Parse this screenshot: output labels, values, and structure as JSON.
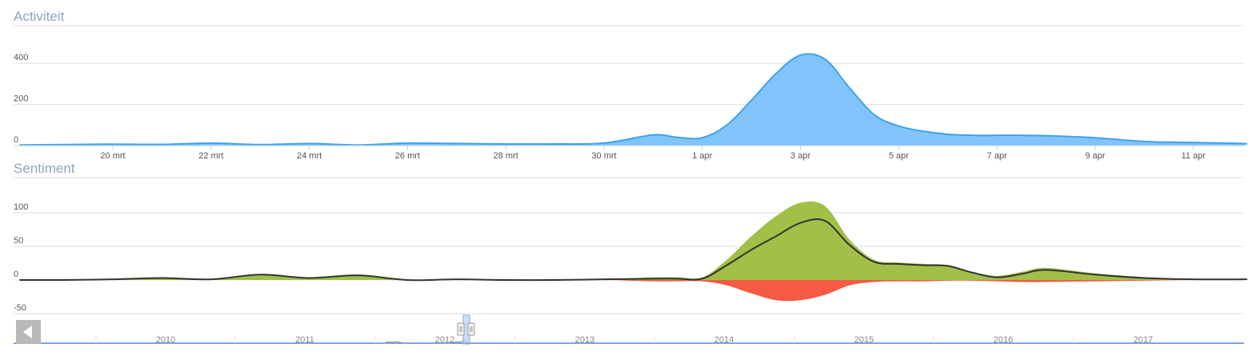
{
  "activity": {
    "title": "Activiteit"
  },
  "sentiment": {
    "title": "Sentiment"
  },
  "navigator": {
    "years": [
      "2010",
      "2011",
      "2012",
      "2013",
      "2014",
      "2015",
      "2016",
      "2017"
    ],
    "back_icon": "chevron-left-icon"
  },
  "colors": {
    "activity_fill": "#81c4fb",
    "activity_line": "#3fa2ee",
    "positive_fill": "#a2bf47",
    "negative_fill": "#f55a44",
    "net_line": "#333333",
    "title": "#8fa3c0",
    "grid": "#dfdfdf"
  },
  "chart_data": [
    {
      "type": "area",
      "title": "Activiteit",
      "x_ticks": [
        "20 mrt",
        "22 mrt",
        "24 mrt",
        "26 mrt",
        "28 mrt",
        "30 mrt",
        "1 apr",
        "3 apr",
        "5 apr",
        "7 apr",
        "9 apr",
        "11 apr"
      ],
      "y_ticks": [
        0,
        200,
        400
      ],
      "ylim": [
        0,
        560
      ],
      "grid": true,
      "series": [
        {
          "x": [
            -1.9,
            -1,
            0,
            1,
            2,
            3,
            4,
            5,
            6,
            7,
            8,
            9,
            10,
            11,
            11.5,
            12,
            12.5,
            13,
            13.5,
            14,
            14.5,
            15,
            15.5,
            16,
            16.5,
            17,
            17.5,
            18,
            18.5,
            19,
            20,
            21,
            22,
            23,
            24,
            24.5
          ],
          "values": [
            3,
            5,
            7,
            6,
            12,
            5,
            10,
            3,
            12,
            10,
            8,
            8,
            12,
            52,
            40,
            38,
            100,
            220,
            350,
            440,
            420,
            280,
            150,
            95,
            70,
            55,
            50,
            50,
            50,
            48,
            38,
            20,
            15,
            10,
            8,
            8
          ]
        }
      ]
    },
    {
      "type": "area",
      "title": "Sentiment",
      "x_ticks": [],
      "y_ticks": [
        -50,
        0,
        50,
        100
      ],
      "ylim": [
        -50,
        150
      ],
      "grid": true,
      "series": [
        {
          "kind": "positive",
          "x": [
            -1.9,
            -1,
            0,
            1,
            2,
            3,
            4,
            5,
            6,
            7,
            8,
            9,
            10,
            11,
            11.5,
            12,
            12.5,
            13,
            13.5,
            14,
            14.5,
            15,
            15.5,
            16,
            16.5,
            17,
            17.5,
            18,
            18.5,
            19,
            20,
            21,
            22,
            23,
            24,
            24.5
          ],
          "values": [
            0,
            0,
            1,
            3,
            1,
            8,
            3,
            7,
            0,
            1,
            0,
            0,
            1,
            4,
            4,
            4,
            30,
            65,
            95,
            115,
            110,
            60,
            30,
            26,
            24,
            22,
            12,
            6,
            12,
            18,
            10,
            4,
            1,
            1,
            1,
            1
          ]
        },
        {
          "kind": "negative",
          "x": [
            -1.9,
            -1,
            0,
            1,
            2,
            3,
            4,
            5,
            6,
            7,
            8,
            9,
            10,
            11,
            11.5,
            12,
            12.5,
            13,
            13.5,
            14,
            14.5,
            15,
            15.5,
            16,
            16.5,
            17,
            17.5,
            18,
            18.5,
            19,
            20,
            21,
            22,
            23,
            24,
            24.5
          ],
          "values": [
            0,
            0,
            0,
            0,
            0,
            0,
            0,
            0,
            0,
            0,
            0,
            0,
            0,
            -2,
            -2,
            -2,
            -8,
            -20,
            -30,
            -30,
            -22,
            -8,
            -3,
            -2,
            -2,
            -1,
            -1,
            -2,
            -3,
            -3,
            -2,
            -1,
            0,
            0,
            0,
            0
          ]
        },
        {
          "kind": "net",
          "x": [
            -1.9,
            -1,
            0,
            1,
            2,
            3,
            4,
            5,
            6,
            7,
            8,
            9,
            10,
            11,
            11.5,
            12,
            12.5,
            13,
            13.5,
            14,
            14.5,
            15,
            15.5,
            16,
            16.5,
            17,
            17.5,
            18,
            18.5,
            19,
            20,
            21,
            22,
            23,
            24,
            24.5
          ],
          "values": [
            0,
            0,
            1,
            3,
            1,
            8,
            3,
            7,
            0,
            1,
            0,
            0,
            1,
            2,
            2,
            2,
            22,
            45,
            65,
            85,
            88,
            52,
            27,
            24,
            22,
            21,
            11,
            4,
            9,
            15,
            8,
            3,
            1,
            1,
            1,
            1
          ]
        }
      ]
    }
  ]
}
